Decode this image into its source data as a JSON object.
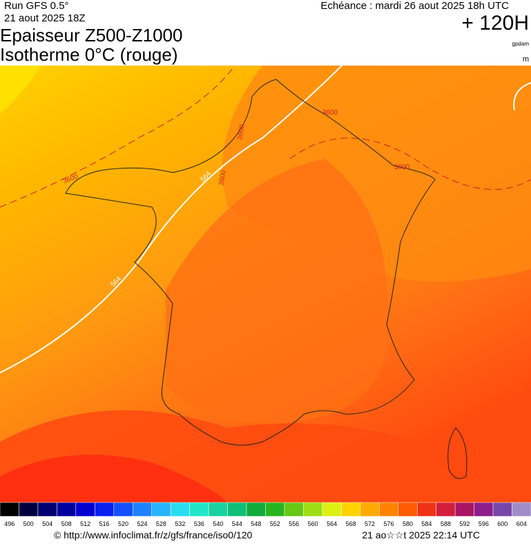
{
  "header": {
    "run": "Run GFS 0.5°",
    "run_date": "21 aout 2025 18Z",
    "valid": "Echéance : mardi 26 aout 2025 18h UTC",
    "lead": "+ 120H",
    "title": "Epaisseur Z500-Z1000",
    "subtitle": "Isotherme 0°C (rouge)",
    "unit_top": "gpdam",
    "unit_bottom": "m"
  },
  "map": {
    "contour_labels": [
      "3600",
      "564",
      "3600",
      "3600",
      "3600",
      "3600",
      "564"
    ]
  },
  "colorbar": {
    "values": [
      496,
      500,
      504,
      508,
      512,
      516,
      520,
      524,
      528,
      532,
      536,
      540,
      544,
      548,
      552,
      556,
      560,
      564,
      568,
      572,
      576,
      580,
      584,
      588,
      592,
      596,
      600,
      604
    ],
    "colors": [
      "#000000",
      "#000040",
      "#000070",
      "#0000a0",
      "#0000d0",
      "#0a1ef0",
      "#1450ff",
      "#1e82ff",
      "#28b4ff",
      "#28dcf0",
      "#20e6c8",
      "#18d2a0",
      "#10be78",
      "#10aa3c",
      "#28b41e",
      "#64c814",
      "#a0dc14",
      "#dcf014",
      "#ffd200",
      "#ffaa00",
      "#ff8200",
      "#ff5a00",
      "#f03214",
      "#d21e3c",
      "#aa1464",
      "#8c1e8c",
      "#7846aa",
      "#a08cc8"
    ]
  },
  "footer": {
    "url": "© http://www.infoclimat.fr/z/gfs/france/iso0/120",
    "generated": "21 ao☆☆t 2025 22:14 UTC"
  }
}
